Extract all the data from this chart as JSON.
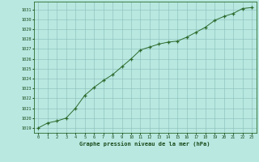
{
  "x": [
    0,
    1,
    2,
    3,
    4,
    5,
    6,
    7,
    8,
    9,
    10,
    11,
    12,
    13,
    14,
    15,
    16,
    17,
    18,
    19,
    20,
    21,
    22,
    23
  ],
  "y": [
    1019.0,
    1019.5,
    1019.7,
    1020.0,
    1021.0,
    1022.3,
    1023.1,
    1023.8,
    1024.4,
    1025.2,
    1026.0,
    1026.9,
    1027.2,
    1027.5,
    1027.7,
    1027.8,
    1028.2,
    1028.7,
    1029.2,
    1029.9,
    1030.3,
    1030.6,
    1031.1,
    1031.2
  ],
  "line_color": "#2d6a2d",
  "marker": "+",
  "marker_color": "#2d6a2d",
  "bg_color": "#b8e8e0",
  "grid_color": "#8bbcb8",
  "title": "Graphe pression niveau de la mer (hPa)",
  "title_color": "#1a4a1a",
  "tick_color": "#1a4a1a",
  "ylim": [
    1018.5,
    1031.8
  ],
  "xlim": [
    -0.5,
    23.5
  ],
  "yticks": [
    1019,
    1020,
    1021,
    1022,
    1023,
    1024,
    1025,
    1026,
    1027,
    1028,
    1029,
    1030,
    1031
  ],
  "xticks": [
    0,
    1,
    2,
    3,
    4,
    5,
    6,
    7,
    8,
    9,
    10,
    11,
    12,
    13,
    14,
    15,
    16,
    17,
    18,
    19,
    20,
    21,
    22,
    23
  ],
  "border_color": "#2d6a2d"
}
